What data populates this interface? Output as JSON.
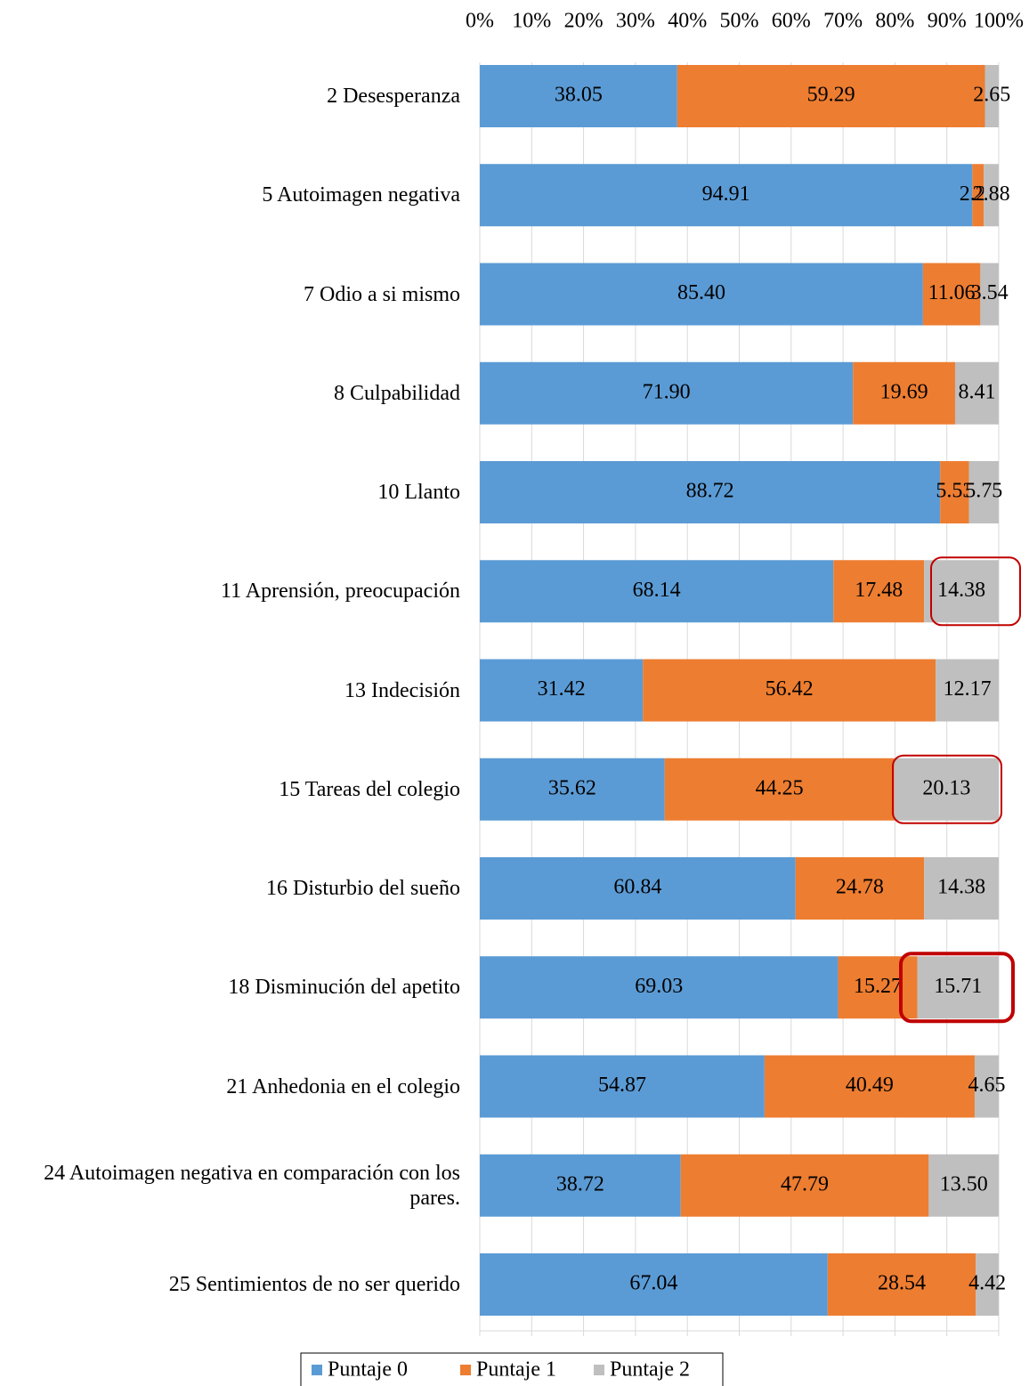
{
  "chart_data": {
    "type": "stacked_bar_horizontal",
    "categories": [
      "2 Desesperanza",
      "5 Autoimagen negativa",
      "7 Odio a si mismo",
      "8 Culpabilidad",
      "10 Llanto",
      "11 Aprensión, preocupación",
      "13 Indecisión",
      "15 Tareas del colegio",
      "16 Disturbio del sueño",
      "18 Disminución del apetito",
      "21 Anhedonia en el colegio",
      "24 Autoimagen negativa en comparación con los pares.",
      "25 Sentimientos de no ser querido"
    ],
    "series": [
      {
        "name": "Puntaje 0",
        "color": "#5b9bd5",
        "values": [
          38.05,
          94.91,
          85.4,
          71.9,
          88.72,
          68.14,
          31.42,
          35.62,
          60.84,
          69.03,
          54.87,
          38.72,
          67.04
        ],
        "value_labels": [
          "38.05",
          "94.91",
          "85.40",
          "71.90",
          "88.72",
          "68.14",
          "31.42",
          "35.62",
          "60.84",
          "69.03",
          "54.87",
          "38.72",
          "67.04"
        ]
      },
      {
        "name": "Puntaje 1",
        "color": "#ed7d31",
        "values": [
          59.29,
          2.21,
          11.06,
          19.69,
          5.53,
          17.48,
          56.42,
          44.25,
          24.78,
          15.27,
          40.49,
          47.79,
          28.54
        ],
        "value_labels": [
          "59.29",
          "2.21",
          "11.06",
          "19.69",
          "5.53",
          "17.48",
          "56.42",
          "44.25",
          "24.78",
          "15.27",
          "40.49",
          "47.79",
          "28.54"
        ]
      },
      {
        "name": "Puntaje 2",
        "color": "#bfbfbf",
        "values": [
          2.65,
          2.88,
          3.54,
          8.41,
          5.75,
          14.38,
          12.17,
          20.13,
          14.38,
          15.71,
          4.65,
          13.5,
          4.42
        ],
        "value_labels": [
          "2.65",
          "2.88",
          "3.54",
          "8.41",
          "5.75",
          "14.38",
          "12.17",
          "20.13",
          "14.38",
          "15.71",
          "4.65",
          "13.50",
          "4.42"
        ]
      }
    ],
    "xlim": [
      0,
      100
    ],
    "xticks": [
      {
        "value": 0,
        "label": "0%"
      },
      {
        "value": 10,
        "label": "10%"
      },
      {
        "value": 20,
        "label": "20%"
      },
      {
        "value": 30,
        "label": "30%"
      },
      {
        "value": 40,
        "label": "40%"
      },
      {
        "value": 50,
        "label": "50%"
      },
      {
        "value": 60,
        "label": "60%"
      },
      {
        "value": 70,
        "label": "70%"
      },
      {
        "value": 80,
        "label": "80%"
      },
      {
        "value": 90,
        "label": "90%"
      },
      {
        "value": 100,
        "label": "100%"
      }
    ],
    "grid": true,
    "legend": "bottom"
  }
}
